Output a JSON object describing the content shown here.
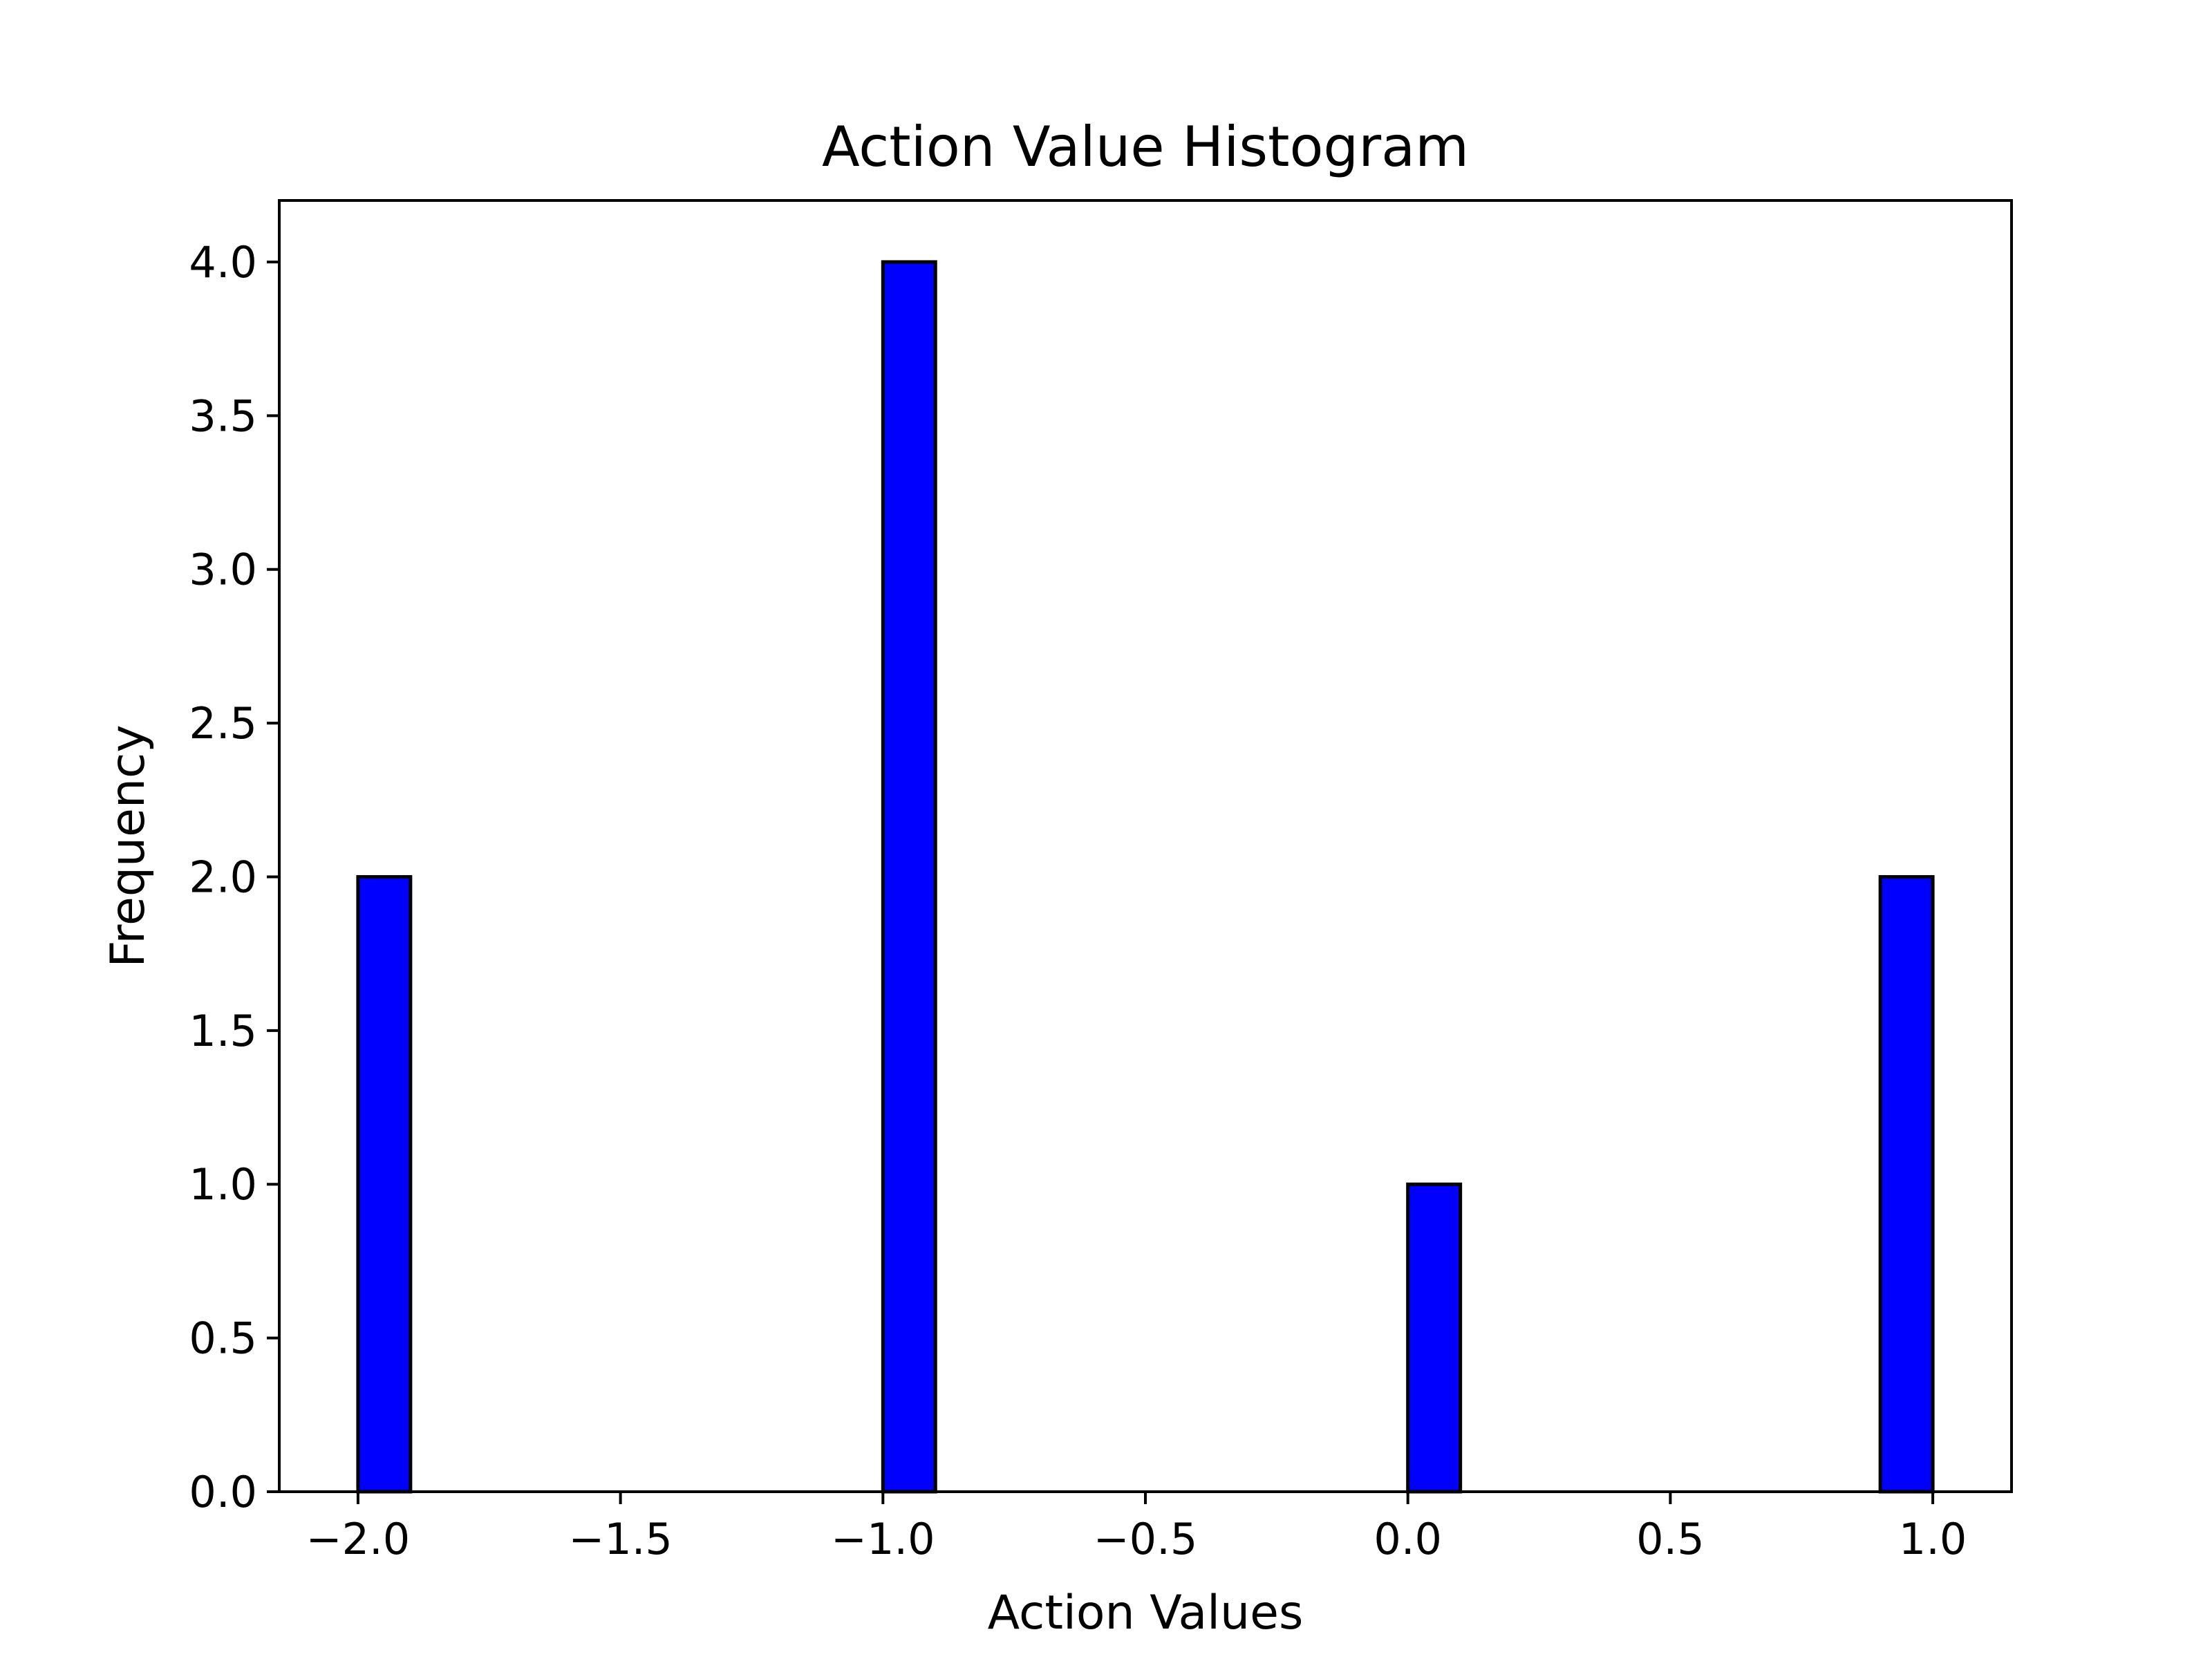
{
  "chart_data": {
    "type": "bar",
    "title": "Action Value Histogram",
    "xlabel": "Action Values",
    "ylabel": "Frequency",
    "xlim": [
      -2.15,
      1.15
    ],
    "ylim": [
      0,
      4.2
    ],
    "bins": [
      {
        "start": -2.0,
        "end": -1.9,
        "count": 2
      },
      {
        "start": -1.0,
        "end": -0.9,
        "count": 4
      },
      {
        "start": 0.0,
        "end": 0.1,
        "count": 1
      },
      {
        "start": 0.9,
        "end": 1.0,
        "count": 2
      }
    ],
    "x_ticks": [
      -2.0,
      -1.5,
      -1.0,
      -0.5,
      0.0,
      0.5,
      1.0
    ],
    "x_tick_labels": [
      "−2.0",
      "−1.5",
      "−1.0",
      "−0.5",
      "0.0",
      "0.5",
      "1.0"
    ],
    "y_ticks": [
      0.0,
      0.5,
      1.0,
      1.5,
      2.0,
      2.5,
      3.0,
      3.5,
      4.0
    ],
    "y_tick_labels": [
      "0.0",
      "0.5",
      "1.0",
      "1.5",
      "2.0",
      "2.5",
      "3.0",
      "3.5",
      "4.0"
    ],
    "bar_color": "#0000ff",
    "edge_color": "#000000",
    "grid": false,
    "legend": null
  }
}
